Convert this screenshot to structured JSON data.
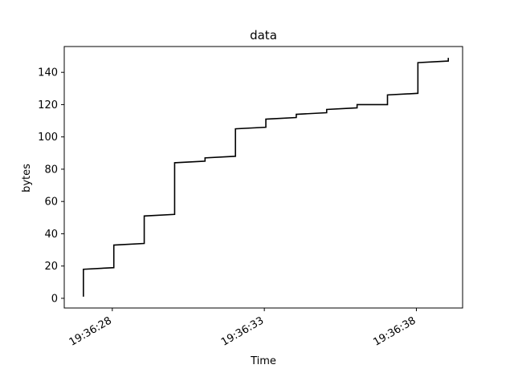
{
  "chart_data": {
    "type": "line",
    "title": "data",
    "xlabel": "Time",
    "ylabel": "bytes",
    "xlim": [
      "19:36:26.42",
      "19:36:39.52"
    ],
    "ylim": [
      -6,
      156
    ],
    "x_ticks": [
      "19:36:28",
      "19:36:33",
      "19:36:38"
    ],
    "y_ticks": [
      0,
      20,
      40,
      60,
      80,
      100,
      120,
      140
    ],
    "grid": false,
    "line_color": "#000000",
    "series": [
      {
        "x": [
          "19:36:27.05",
          "19:36:27.05",
          "19:36:28.05",
          "19:36:28.05",
          "19:36:29.05",
          "19:36:29.05",
          "19:36:30.05",
          "19:36:30.05",
          "19:36:31.05",
          "19:36:31.05",
          "19:36:32.05",
          "19:36:32.05",
          "19:36:33.05",
          "19:36:33.05",
          "19:36:34.05",
          "19:36:34.05",
          "19:36:35.05",
          "19:36:35.05",
          "19:36:36.05",
          "19:36:36.05",
          "19:36:37.05",
          "19:36:37.05",
          "19:36:38.05",
          "19:36:38.05",
          "19:36:39.05",
          "19:36:39.05"
        ],
        "y": [
          1,
          18,
          19,
          33,
          34,
          51,
          52,
          84,
          85,
          87,
          88,
          105,
          106,
          111,
          112,
          114,
          115,
          117,
          118,
          120,
          120,
          126,
          127,
          146,
          147,
          149
        ]
      }
    ]
  }
}
